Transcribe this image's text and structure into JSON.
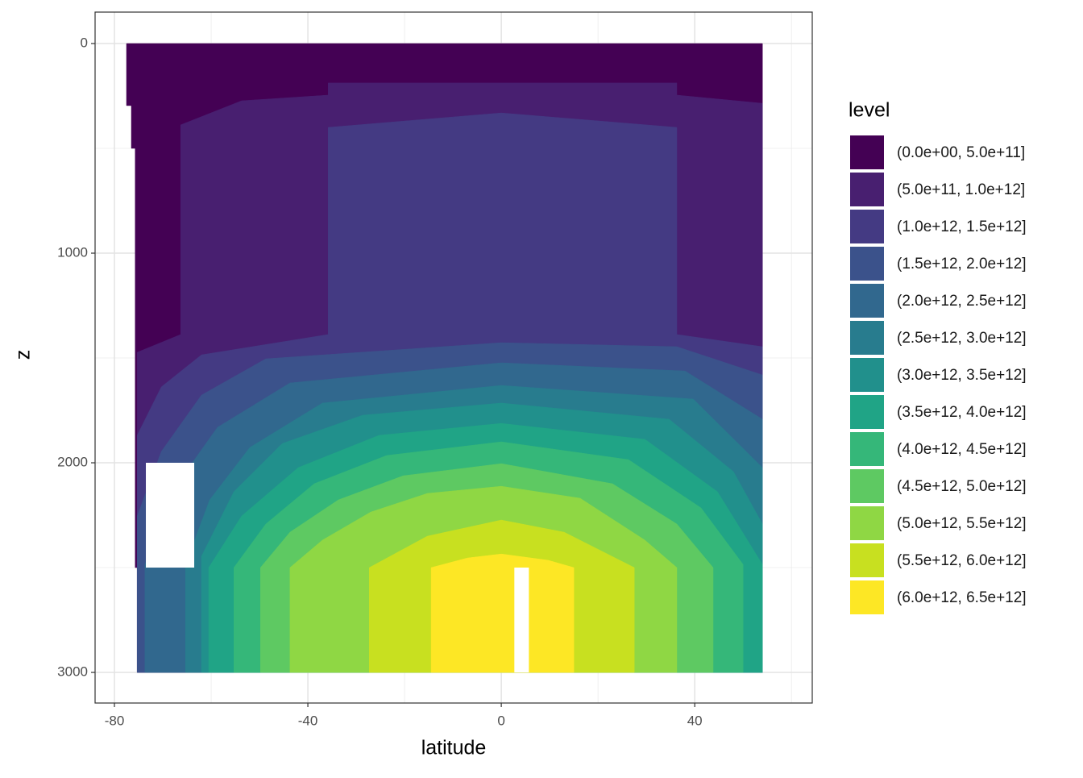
{
  "chart_data": {
    "type": "contour",
    "xlabel": "latitude",
    "ylabel": "z",
    "legend_title": "level",
    "xlim": [
      -84,
      64.3
    ],
    "ylim": [
      3146,
      -150
    ],
    "xticks": [
      -80,
      -40,
      0,
      40
    ],
    "yticks": [
      0,
      1000,
      2000,
      3000
    ],
    "grid": true,
    "series": [
      {
        "name": "(0.0e+00, 5.0e+11]",
        "color": "#440154",
        "polygon": [
          [
            -77.5,
            0
          ],
          [
            54,
            0
          ],
          [
            54,
            3000
          ],
          [
            -60.5,
            3000
          ],
          [
            -60.5,
            2500
          ],
          [
            -75.7,
            2500
          ],
          [
            -75.7,
            500
          ],
          [
            -76.5,
            500
          ],
          [
            -76.5,
            296
          ],
          [
            -77.5,
            296
          ]
        ]
      },
      {
        "name": "(5.0e+11, 1.0e+12]",
        "color": "#481f70",
        "polygon": [
          [
            -75.3,
            3000
          ],
          [
            -75.3,
            1473
          ],
          [
            -66.3,
            1388
          ],
          [
            -66.3,
            388
          ],
          [
            -53.7,
            273
          ],
          [
            -35.8,
            246
          ],
          [
            -35.8,
            188
          ],
          [
            36.3,
            188
          ],
          [
            36.3,
            246
          ],
          [
            54,
            285
          ],
          [
            54,
            3000
          ]
        ]
      },
      {
        "name": "(1.0e+12, 1.5e+12]",
        "color": "#443a83",
        "polygon": [
          [
            -75.3,
            3000
          ],
          [
            -75.3,
            1869
          ],
          [
            -70.3,
            1638
          ],
          [
            -62,
            1485
          ],
          [
            -35.8,
            1388
          ],
          [
            -35.8,
            400
          ],
          [
            0,
            331
          ],
          [
            36.3,
            400
          ],
          [
            36.3,
            1388
          ],
          [
            54,
            1446
          ],
          [
            54,
            3000
          ]
        ]
      },
      {
        "name": "(1.5e+12, 2.0e+12]",
        "color": "#3b528b",
        "polygon": [
          [
            -75.3,
            3000
          ],
          [
            -75.3,
            2254
          ],
          [
            -70.3,
            1946
          ],
          [
            -62,
            1677
          ],
          [
            -48.7,
            1504
          ],
          [
            0,
            1427
          ],
          [
            36.3,
            1446
          ],
          [
            54,
            1581
          ],
          [
            54,
            3000
          ]
        ]
      },
      {
        "name": "(2.0e+12, 2.5e+12]",
        "color": "#31688e",
        "polygon": [
          [
            -73.7,
            3000
          ],
          [
            -73.7,
            2485
          ],
          [
            -67,
            2100
          ],
          [
            -58.7,
            1831
          ],
          [
            -43.7,
            1619
          ],
          [
            0,
            1523
          ],
          [
            38,
            1562
          ],
          [
            54,
            1792
          ],
          [
            54,
            3000
          ]
        ]
      },
      {
        "name": "(2.5e+12, 3.0e+12]",
        "color": "#287c8e",
        "polygon": [
          [
            -65.3,
            3000
          ],
          [
            -65.3,
            2485
          ],
          [
            -60.3,
            2177
          ],
          [
            -52,
            1927
          ],
          [
            -37,
            1715
          ],
          [
            0,
            1631
          ],
          [
            39.7,
            1696
          ],
          [
            54,
            2023
          ],
          [
            54,
            3000
          ]
        ]
      },
      {
        "name": "(3.0e+12, 3.5e+12]",
        "color": "#21908c",
        "polygon": [
          [
            -62,
            3000
          ],
          [
            -62,
            2446
          ],
          [
            -55.3,
            2138
          ],
          [
            -45.3,
            1908
          ],
          [
            -28.7,
            1773
          ],
          [
            0,
            1715
          ],
          [
            34.7,
            1792
          ],
          [
            48,
            2042
          ],
          [
            54,
            2292
          ],
          [
            54,
            3000
          ]
        ]
      },
      {
        "name": "(3.5e+12, 4.0e+12]",
        "color": "#20a486",
        "polygon": [
          [
            -60.5,
            3000
          ],
          [
            -60.5,
            2500
          ],
          [
            -53.7,
            2254
          ],
          [
            -42,
            2023
          ],
          [
            -25.3,
            1869
          ],
          [
            0,
            1812
          ],
          [
            29.7,
            1888
          ],
          [
            44.7,
            2138
          ],
          [
            54,
            2485
          ],
          [
            54,
            3000
          ]
        ]
      },
      {
        "name": "(4.0e+12, 4.5e+12]",
        "color": "#35b779",
        "polygon": [
          [
            -55.3,
            3000
          ],
          [
            -55.3,
            2500
          ],
          [
            -48.7,
            2292
          ],
          [
            -38.7,
            2100
          ],
          [
            -23.7,
            1965
          ],
          [
            0,
            1900
          ],
          [
            26.3,
            1985
          ],
          [
            41.3,
            2215
          ],
          [
            50,
            2485
          ],
          [
            50,
            3000
          ]
        ]
      },
      {
        "name": "(4.5e+12, 5.0e+12]",
        "color": "#5ec962",
        "polygon": [
          [
            -49.8,
            3000
          ],
          [
            -49.8,
            2500
          ],
          [
            -43.7,
            2331
          ],
          [
            -33.7,
            2177
          ],
          [
            -20.3,
            2062
          ],
          [
            0,
            2004
          ],
          [
            23,
            2100
          ],
          [
            36.3,
            2292
          ],
          [
            43.8,
            2500
          ],
          [
            43.8,
            3000
          ]
        ]
      },
      {
        "name": "(5.0e+12, 5.5e+12]",
        "color": "#8fd744",
        "polygon": [
          [
            -43.7,
            3000
          ],
          [
            -43.7,
            2500
          ],
          [
            -37,
            2369
          ],
          [
            -27,
            2235
          ],
          [
            -15.3,
            2146
          ],
          [
            0,
            2112
          ],
          [
            16.3,
            2169
          ],
          [
            29.7,
            2369
          ],
          [
            36.3,
            2500
          ],
          [
            36.3,
            3000
          ]
        ]
      },
      {
        "name": "(5.5e+12, 6.0e+12]",
        "color": "#c8e020",
        "polygon": [
          [
            -27.3,
            3000
          ],
          [
            -27.3,
            2500
          ],
          [
            -15.3,
            2350
          ],
          [
            0,
            2273
          ],
          [
            13,
            2331
          ],
          [
            27.5,
            2500
          ],
          [
            27.5,
            3000
          ]
        ]
      },
      {
        "name": "(6.0e+12, 6.5e+12]",
        "color": "#fde725",
        "polygon": [
          [
            -14.5,
            3000
          ],
          [
            -14.5,
            2500
          ],
          [
            -7,
            2454
          ],
          [
            0,
            2435
          ],
          [
            9.7,
            2465
          ],
          [
            15,
            2500
          ],
          [
            15,
            3000
          ]
        ]
      }
    ],
    "missing": [
      [
        [
          -73.5,
          2000
        ],
        [
          -63.5,
          2000
        ],
        [
          -63.5,
          2500
        ],
        [
          -73.5,
          2500
        ]
      ],
      [
        [
          2.7,
          2500
        ],
        [
          5.7,
          2500
        ],
        [
          5.7,
          3000
        ],
        [
          2.7,
          3000
        ]
      ]
    ]
  }
}
